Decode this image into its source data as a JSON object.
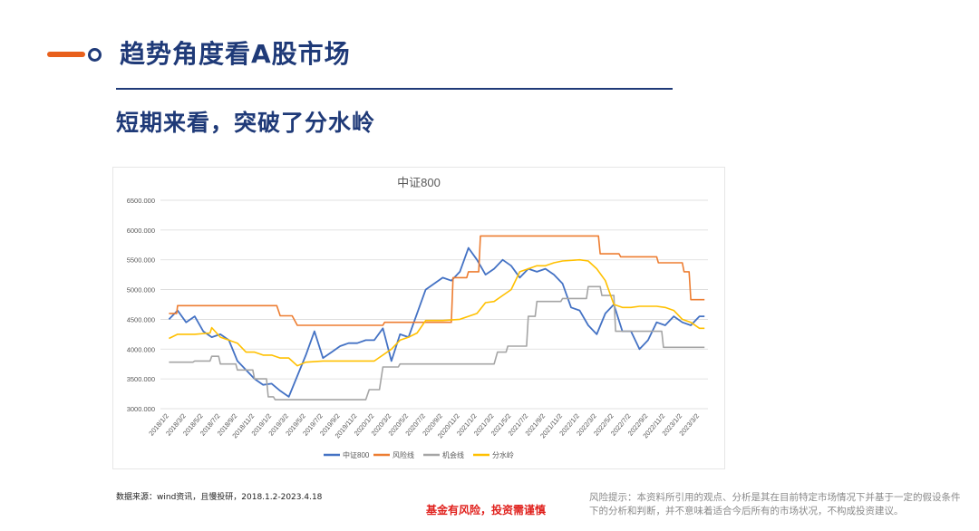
{
  "header": {
    "title": "趋势角度看A股市场",
    "subtitle": "短期来看，突破了分水岭"
  },
  "footer": {
    "source": "数据来源：wind资讯，且慢投研，2018.1.2-2023.4.18",
    "warning": "基金有风险，投资需谨慎",
    "risk_notice": "风险提示：本资料所引用的观点、分析是其在目前特定市场情况下并基于一定的假设条件下的分析和判断，并不意味着适合今后所有的市场状况，不构成投资建议。"
  },
  "colors": {
    "accent_orange": "#e8601c",
    "brand_navy": "#1f3a78",
    "warning_red": "#e0201c"
  },
  "chart_data": {
    "type": "line",
    "title": "中证800",
    "xlabel": "",
    "ylabel": "",
    "ylim": [
      3000,
      6500
    ],
    "yticks": [
      "3000.000",
      "3500.000",
      "4000.000",
      "4500.000",
      "5000.000",
      "5500.000",
      "6000.000",
      "6500.000"
    ],
    "categories": [
      "2018/1/2",
      "2018/3/2",
      "2018/5/2",
      "2018/7/2",
      "2018/9/2",
      "2018/11/2",
      "2019/1/2",
      "2019/3/2",
      "2019/5/2",
      "2019/7/2",
      "2019/9/2",
      "2019/11/2",
      "2020/1/2",
      "2020/3/2",
      "2020/5/2",
      "2020/7/2",
      "2020/9/2",
      "2020/11/2",
      "2021/1/2",
      "2021/3/2",
      "2021/5/2",
      "2021/7/2",
      "2021/9/2",
      "2021/11/2",
      "2022/1/2",
      "2022/3/2",
      "2022/5/2",
      "2022/7/2",
      "2022/9/2",
      "2022/11/2",
      "2023/1/2",
      "2023/3/2"
    ],
    "legend_position": "bottom",
    "grid": true,
    "series": [
      {
        "name": "中证800",
        "color": "#4472c4",
        "x": [
          0,
          0.5,
          1,
          1.5,
          2,
          2.5,
          3,
          3.5,
          4,
          4.5,
          5,
          5.5,
          6,
          6.5,
          7,
          7.5,
          8,
          8.5,
          9,
          9.5,
          10,
          10.5,
          11,
          11.5,
          12,
          12.5,
          13,
          13.5,
          14,
          14.5,
          15,
          15.5,
          16,
          16.5,
          17,
          17.5,
          18,
          18.5,
          19,
          19.5,
          20,
          20.5,
          21,
          21.5,
          22,
          22.5,
          23,
          23.5,
          24,
          24.5,
          25,
          25.5,
          26,
          26.5,
          27,
          27.5,
          28,
          28.5,
          29,
          29.5,
          30,
          30.5,
          31,
          31.3
        ],
        "values": [
          4500,
          4650,
          4450,
          4550,
          4300,
          4200,
          4250,
          4150,
          3800,
          3650,
          3500,
          3400,
          3420,
          3300,
          3200,
          3550,
          3900,
          4300,
          3850,
          3950,
          4050,
          4100,
          4100,
          4150,
          4150,
          4350,
          3800,
          4250,
          4200,
          4600,
          5000,
          5100,
          5200,
          5150,
          5300,
          5700,
          5500,
          5250,
          5350,
          5500,
          5400,
          5200,
          5350,
          5300,
          5350,
          5250,
          5100,
          4700,
          4650,
          4400,
          4250,
          4600,
          4750,
          4300,
          4300,
          4000,
          4150,
          4450,
          4400,
          4550,
          4450,
          4400,
          4550,
          4550
        ]
      },
      {
        "name": "风险线",
        "color": "#ed7d31",
        "x": [
          0,
          0.45,
          0.5,
          6.3,
          6.5,
          7.2,
          7.5,
          12.5,
          12.6,
          14.3,
          14.5,
          16.5,
          16.6,
          17.4,
          17.5,
          18.1,
          18.2,
          25.1,
          25.2,
          26.3,
          26.4,
          28.5,
          28.6,
          30,
          30.1,
          30.4,
          30.5,
          31.3
        ],
        "values": [
          4600,
          4600,
          4730,
          4730,
          4560,
          4560,
          4400,
          4400,
          4450,
          4450,
          4450,
          4450,
          5200,
          5200,
          5300,
          5300,
          5900,
          5900,
          5600,
          5600,
          5550,
          5550,
          5450,
          5450,
          5300,
          5300,
          4830,
          4830
        ]
      },
      {
        "name": "机会线",
        "color": "#a5a5a5",
        "x": [
          0,
          1.4,
          1.5,
          2.4,
          2.5,
          2.9,
          3,
          3.9,
          4,
          4.9,
          5,
          5.7,
          5.8,
          6.1,
          6.2,
          11.5,
          11.7,
          12.3,
          12.5,
          13.4,
          13.5,
          19,
          19.2,
          19.7,
          19.8,
          20.9,
          21,
          21.4,
          21.5,
          22.9,
          23,
          24.4,
          24.5,
          25.2,
          25.3,
          26,
          26.1,
          28.8,
          28.9,
          31.3
        ],
        "values": [
          3780,
          3780,
          3800,
          3800,
          3880,
          3880,
          3750,
          3750,
          3650,
          3650,
          3500,
          3500,
          3200,
          3200,
          3150,
          3150,
          3320,
          3320,
          3700,
          3700,
          3750,
          3750,
          3950,
          3950,
          4050,
          4050,
          4550,
          4550,
          4800,
          4800,
          4850,
          4850,
          5050,
          5050,
          4900,
          4900,
          4300,
          4300,
          4030,
          4030
        ]
      },
      {
        "name": "分水岭",
        "color": "#ffc000",
        "x": [
          0,
          0.5,
          1.5,
          2.4,
          2.5,
          3,
          3.5,
          4,
          4.5,
          5,
          5.5,
          6,
          6.5,
          7,
          7.5,
          8,
          9,
          10,
          11,
          11.5,
          12,
          13,
          13.5,
          14,
          14.5,
          15,
          16,
          17,
          17.5,
          18,
          18.5,
          19,
          19.5,
          20,
          20.5,
          21,
          21.5,
          22,
          22.5,
          23,
          24,
          24.5,
          25,
          25.5,
          26,
          26.5,
          27,
          27.5,
          28,
          28.5,
          29,
          29.5,
          30,
          30.5,
          31,
          31.3
        ],
        "values": [
          4180,
          4250,
          4250,
          4270,
          4360,
          4200,
          4150,
          4100,
          3950,
          3950,
          3900,
          3900,
          3850,
          3850,
          3720,
          3780,
          3800,
          3800,
          3800,
          3800,
          3800,
          4000,
          4150,
          4200,
          4270,
          4480,
          4480,
          4500,
          4550,
          4600,
          4780,
          4800,
          4900,
          5000,
          5300,
          5350,
          5400,
          5400,
          5450,
          5480,
          5500,
          5480,
          5350,
          5150,
          4750,
          4700,
          4700,
          4720,
          4720,
          4720,
          4700,
          4650,
          4500,
          4450,
          4350,
          4350
        ]
      }
    ]
  }
}
